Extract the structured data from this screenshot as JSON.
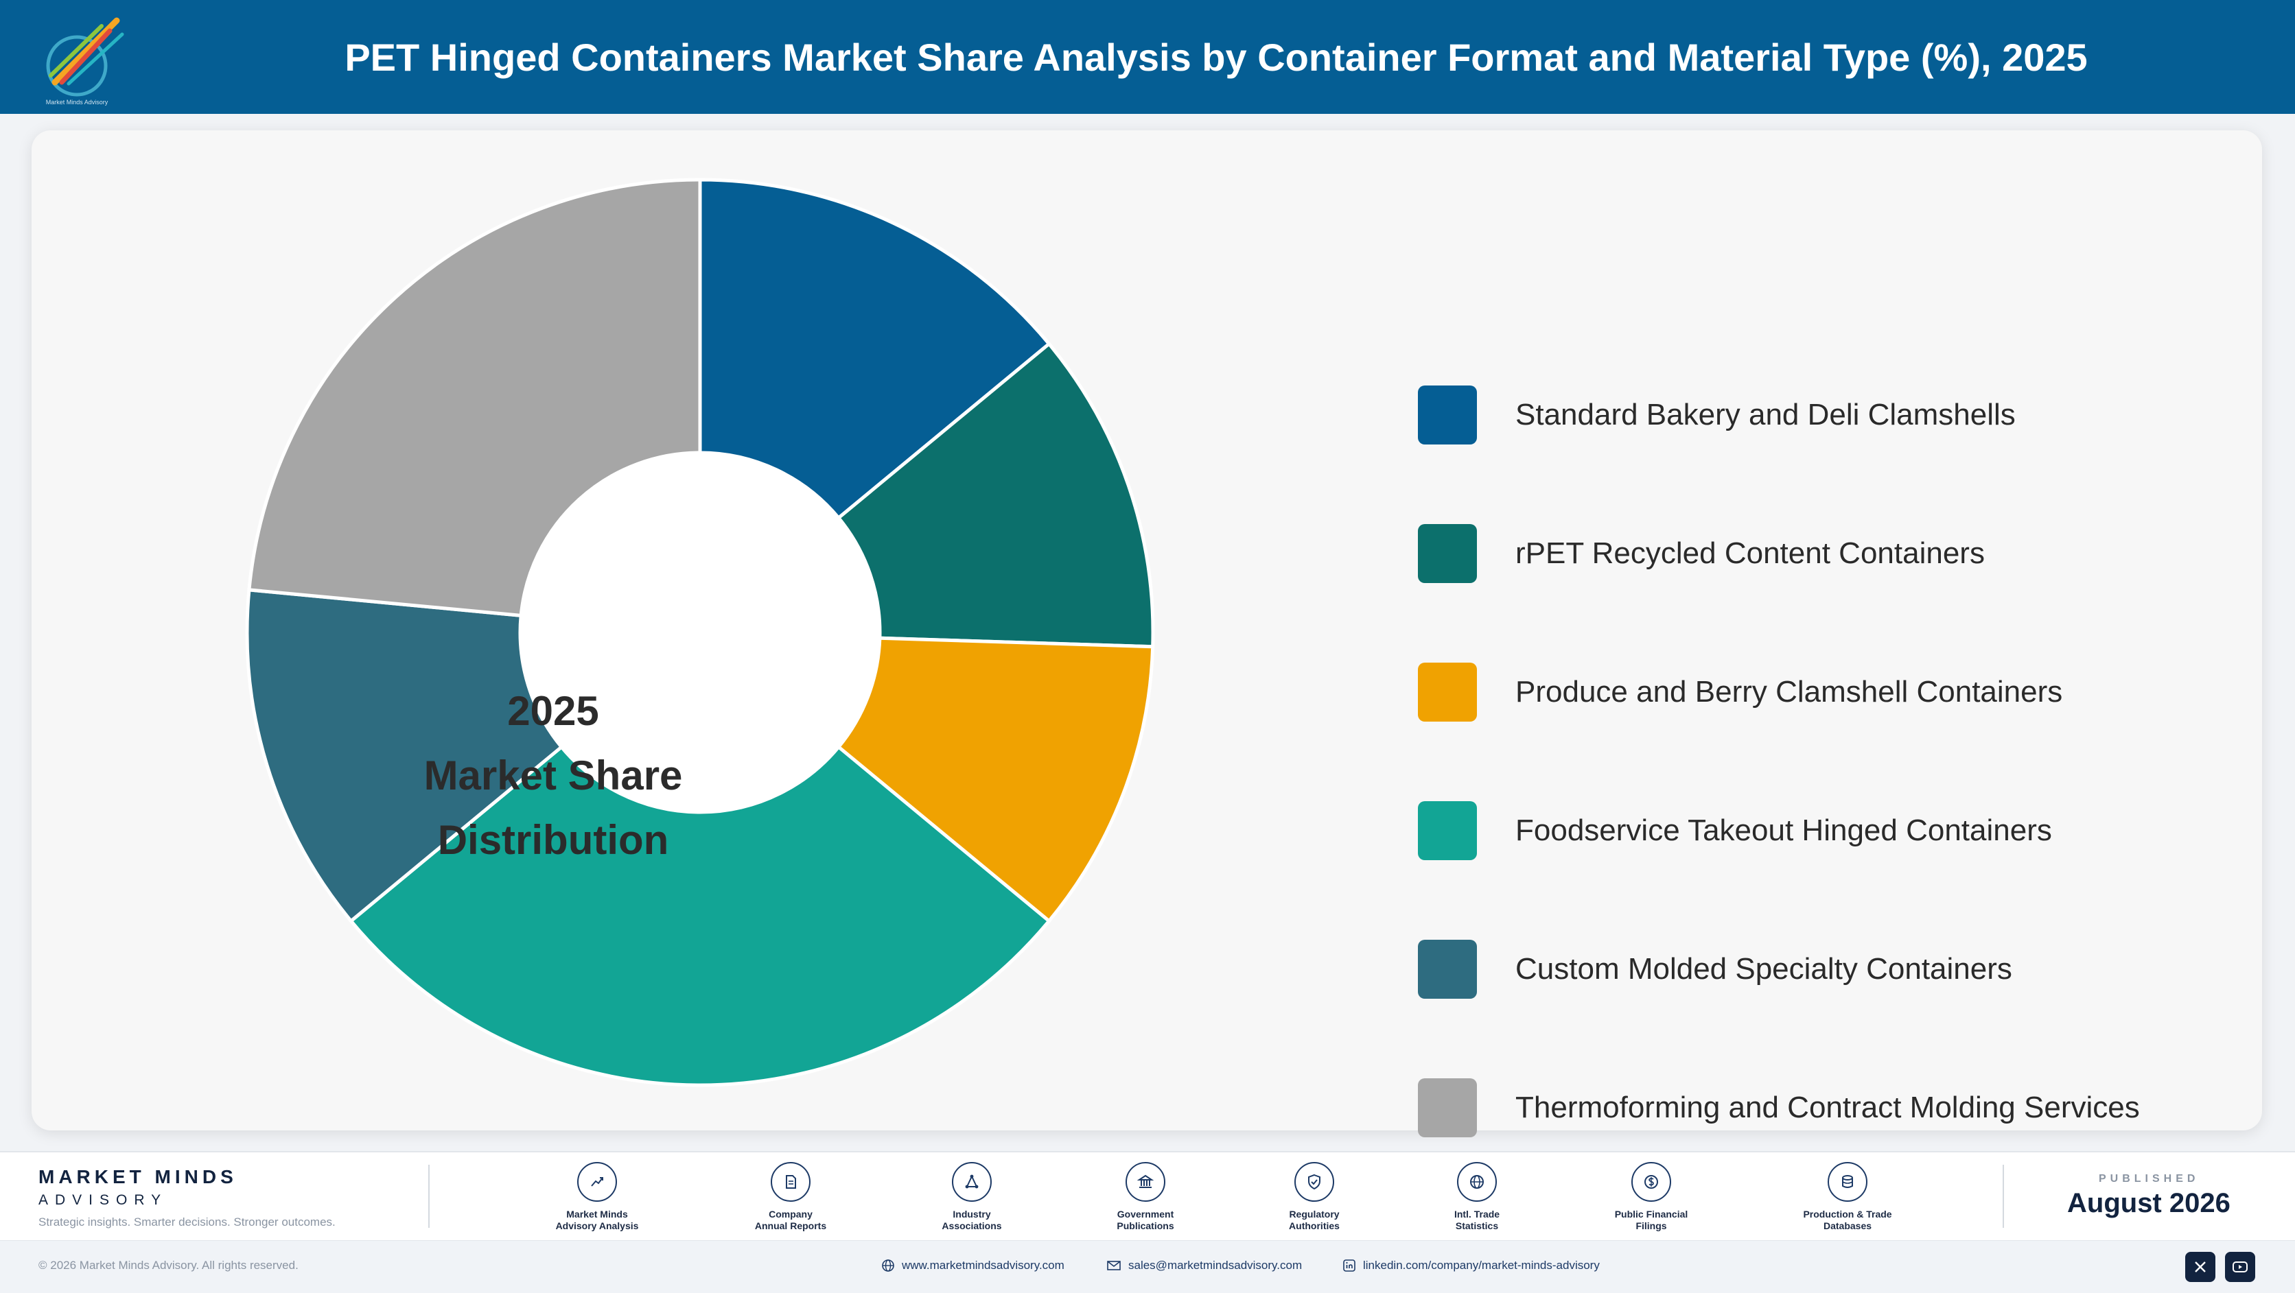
{
  "header": {
    "title": "PET Hinged Containers Market Share Analysis by Container Format and Material Type (%), 2025",
    "logo_icon": "market-minds-logo-icon"
  },
  "chart_center": {
    "line1": "2025",
    "line2": "Market Share",
    "line3": "Distribution"
  },
  "chart_data": {
    "type": "pie",
    "style": "donut",
    "title": "PET Hinged Containers Market Share Analysis by Container Format and Material Type (%), 2025",
    "categories": [
      "Standard Bakery and Deli Clamshells",
      "rPET Recycled Content Containers",
      "Produce and Berry Clamshell Containers",
      "Foodservice Takeout Hinged Containers",
      "Custom Molded Specialty Containers",
      "Thermoforming and Contract Molding Services"
    ],
    "values": [
      14,
      11.5,
      10.5,
      28,
      12.5,
      23.5
    ],
    "colors": [
      "#055e94",
      "#0c706c",
      "#f0a201",
      "#12a595",
      "#2e6c80",
      "#a6a6a6"
    ],
    "legend_position": "right",
    "start_angle_deg": 0
  },
  "footer": {
    "brand_name": "MARKET MINDS",
    "brand_sub": "ADVISORY",
    "tagline": "Strategic insights. Smarter decisions. Stronger outcomes.",
    "sources": [
      {
        "line1": "Market Minds",
        "line2": "Advisory Analysis",
        "icon": "trend-line-icon"
      },
      {
        "line1": "Company",
        "line2": "Annual Reports",
        "icon": "document-icon"
      },
      {
        "line1": "Industry",
        "line2": "Associations",
        "icon": "network-icon"
      },
      {
        "line1": "Government",
        "line2": "Publications",
        "icon": "government-building-icon"
      },
      {
        "line1": "Regulatory",
        "line2": "Authorities",
        "icon": "shield-check-icon"
      },
      {
        "line1": "Intl. Trade",
        "line2": "Statistics",
        "icon": "globe-icon"
      },
      {
        "line1": "Public Financial",
        "line2": "Filings",
        "icon": "dollar-coin-icon"
      },
      {
        "line1": "Production & Trade",
        "line2": "Databases",
        "icon": "database-icon"
      }
    ],
    "published_label": "PUBLISHED",
    "published_date": "August 2026",
    "copyright": "© 2026 Market Minds Advisory. All rights reserved.",
    "website": "www.marketmindsadvisory.com",
    "email": "sales@marketmindsadvisory.com",
    "linkedin": "linkedin.com/company/market-minds-advisory",
    "social": [
      "x-icon",
      "youtube-icon"
    ]
  }
}
